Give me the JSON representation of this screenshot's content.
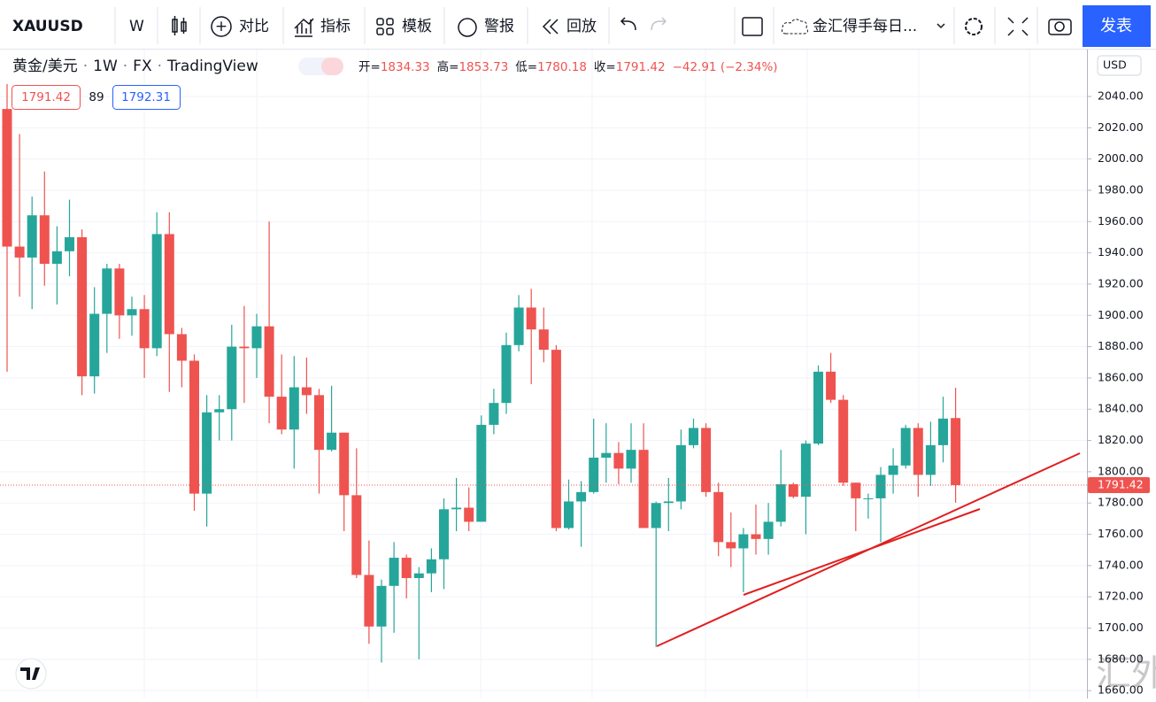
{
  "toolbar": {
    "symbol": "XAUUSD",
    "interval": "W",
    "compare": "对比",
    "indicators": "指标",
    "templates": "模板",
    "alert": "警报",
    "replay": "回放",
    "layout_name": "金汇得手每日...",
    "publish": "发表"
  },
  "legend": {
    "name": "黄金/美元",
    "interval": "1W",
    "exchange": "FX",
    "source": "TradingView",
    "open_label": "开=",
    "high_label": "高=",
    "low_label": "低=",
    "close_label": "收=",
    "change": "−42.91 (−2.34%)",
    "spread": "89",
    "ask": "1792.31"
  },
  "currency": "USD",
  "watermark": "汇外网",
  "chart_data": {
    "type": "candlestick",
    "up_color": "#26a69a",
    "down_color": "#ef5350",
    "grid": true,
    "ylim": [
      1655,
      2070
    ],
    "yticks": [
      {
        "value": 1660,
        "label": "1660.00"
      },
      {
        "value": 1680,
        "label": "1680.00"
      },
      {
        "value": 1700,
        "label": "1700.00"
      },
      {
        "value": 1720,
        "label": "1720.00"
      },
      {
        "value": 1740,
        "label": "1740.00"
      },
      {
        "value": 1760,
        "label": "1760.00"
      },
      {
        "value": 1780,
        "label": "1780.00"
      },
      {
        "value": 1800,
        "label": "1800.00"
      },
      {
        "value": 1820,
        "label": "1820.00"
      },
      {
        "value": 1840,
        "label": "1840.00"
      },
      {
        "value": 1860,
        "label": "1860.00"
      },
      {
        "value": 1880,
        "label": "1880.00"
      },
      {
        "value": 1900,
        "label": "1900.00"
      },
      {
        "value": 1920,
        "label": "1920.00"
      },
      {
        "value": 1940,
        "label": "1940.00"
      },
      {
        "value": 1960,
        "label": "1960.00"
      },
      {
        "value": 1980,
        "label": "1980.00"
      },
      {
        "value": 2000,
        "label": "2000.00"
      },
      {
        "value": 2020,
        "label": "2020.00"
      },
      {
        "value": 2040,
        "label": "2040.00"
      }
    ],
    "open": [
      2032,
      1944,
      1937,
      1964,
      1933,
      1941,
      1950,
      1861,
      1901,
      1930,
      1900,
      1904,
      1879,
      1952,
      1888,
      1871,
      1786,
      1838,
      1840,
      1880,
      1879,
      1893,
      1848,
      1827,
      1854,
      1849,
      1814,
      1825,
      1785,
      1734,
      1701,
      1727,
      1745,
      1732,
      1735,
      1744,
      1776,
      1777,
      1768,
      1830,
      1844,
      1881,
      1905,
      1891,
      1878,
      1764,
      1781,
      1787,
      1809,
      1812,
      1802,
      1814,
      1764,
      1780,
      1781,
      1817,
      1828,
      1787,
      1755,
      1751,
      1760,
      1757,
      1768,
      1792,
      1784,
      1818,
      1864,
      1846,
      1793,
      1783,
      1783,
      1798,
      1804,
      1828,
      1798,
      1817,
      1834.33
    ],
    "high": [
      2048,
      2016,
      1976,
      1992,
      1957,
      1974,
      1955,
      1918,
      1933,
      1933,
      1912,
      1913,
      1966,
      1966,
      1892,
      1875,
      1849,
      1849,
      1894,
      1906,
      1901,
      1960,
      1875,
      1874,
      1873,
      1853,
      1855,
      1825,
      1815,
      1756,
      1731,
      1755,
      1747,
      1739,
      1751,
      1783,
      1796,
      1790,
      1836,
      1853,
      1889,
      1913,
      1917,
      1905,
      1881,
      1795,
      1794,
      1834,
      1831,
      1819,
      1831,
      1831,
      1781,
      1796,
      1827,
      1834,
      1831,
      1793,
      1774,
      1764,
      1779,
      1780,
      1814,
      1793,
      1820,
      1868,
      1876,
      1849,
      1793,
      1786,
      1803,
      1815,
      1830,
      1831,
      1832,
      1848,
      1853.73
    ],
    "low": [
      1864,
      1912,
      1904,
      1919,
      1907,
      1925,
      1849,
      1850,
      1876,
      1885,
      1887,
      1860,
      1874,
      1851,
      1854,
      1775,
      1765,
      1820,
      1820,
      1844,
      1860,
      1831,
      1824,
      1802,
      1837,
      1786,
      1813,
      1762,
      1732,
      1690,
      1678,
      1697,
      1719,
      1680,
      1723,
      1725,
      1762,
      1762,
      1768,
      1824,
      1837,
      1877,
      1856,
      1870,
      1762,
      1763,
      1752,
      1786,
      1793,
      1792,
      1793,
      1764,
      1688,
      1762,
      1776,
      1815,
      1784,
      1746,
      1739,
      1723,
      1747,
      1747,
      1765,
      1783,
      1760,
      1817,
      1844,
      1791,
      1762,
      1770,
      1755,
      1786,
      1802,
      1784,
      1791,
      1806,
      1780.18
    ],
    "close": [
      1944,
      1937,
      1964,
      1933,
      1941,
      1950,
      1861,
      1901,
      1930,
      1900,
      1904,
      1879,
      1952,
      1888,
      1871,
      1786,
      1838,
      1840,
      1880,
      1879,
      1893,
      1848,
      1827,
      1854,
      1849,
      1814,
      1825,
      1785,
      1734,
      1701,
      1727,
      1745,
      1732,
      1735,
      1744,
      1776,
      1777,
      1768,
      1830,
      1844,
      1881,
      1905,
      1891,
      1878,
      1764,
      1781,
      1787,
      1809,
      1812,
      1802,
      1814,
      1764,
      1780,
      1781,
      1817,
      1828,
      1787,
      1755,
      1751,
      1760,
      1757,
      1768,
      1792,
      1784,
      1818,
      1864,
      1846,
      1793,
      1783,
      1783,
      1798,
      1804,
      1828,
      1798,
      1817,
      1834,
      1791.42
    ]
  }
}
